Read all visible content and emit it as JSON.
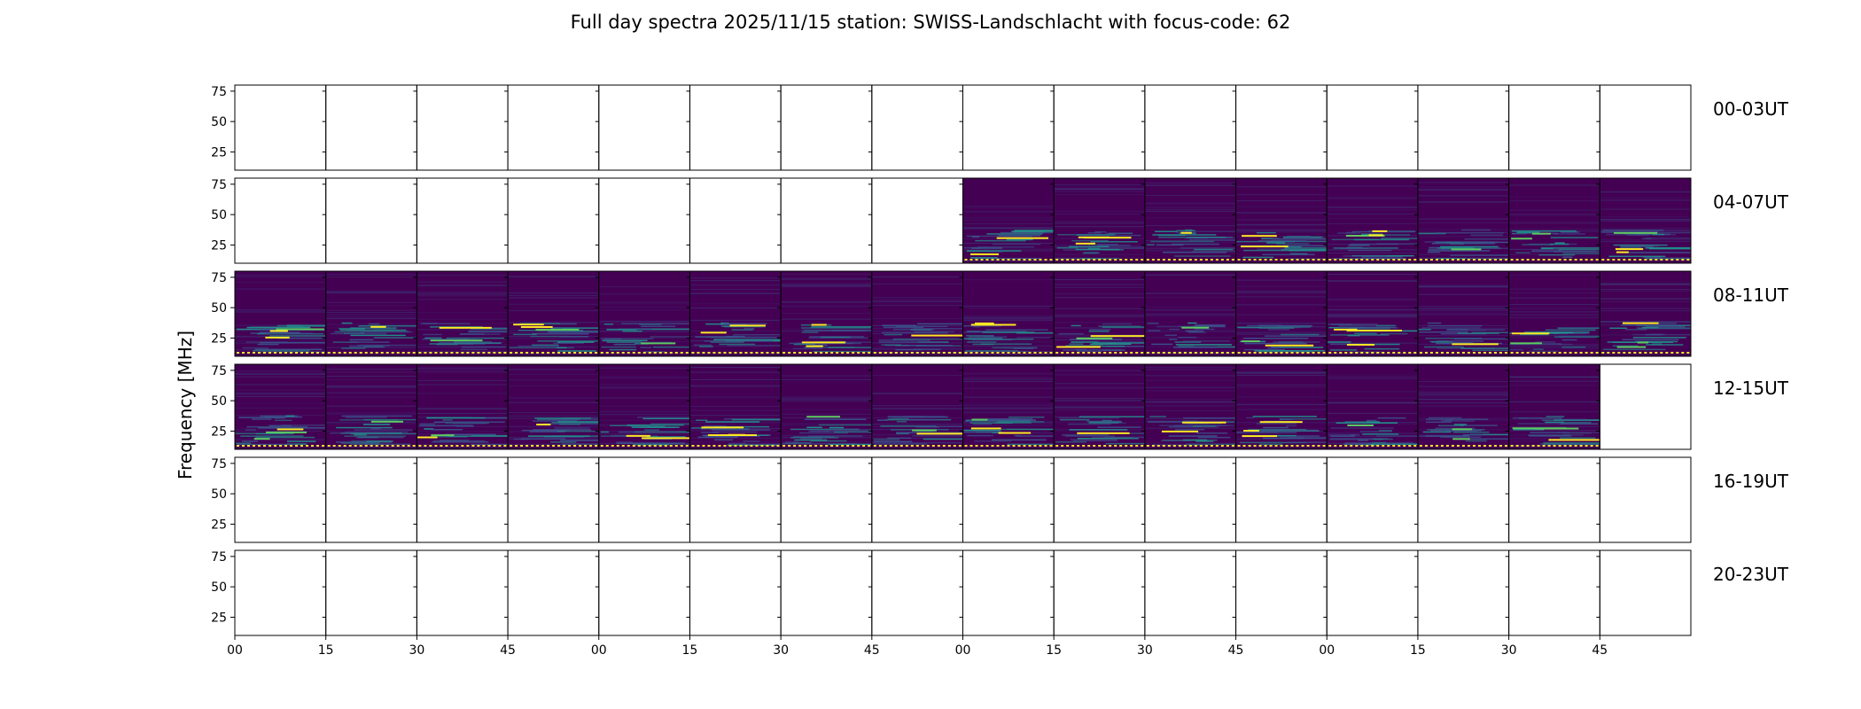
{
  "chart_data": {
    "type": "heatmap",
    "title": "Full day spectra 2025/11/15 station: SWISS-Landschlacht with focus-code: 62",
    "ylabel": "Frequency [MHz]",
    "xlabel": "",
    "yticks": [
      25,
      50,
      75
    ],
    "ylim": [
      10,
      80
    ],
    "xticks": [
      "00",
      "15",
      "30",
      "45",
      "00",
      "15",
      "30",
      "45",
      "00",
      "15",
      "30",
      "45",
      "00",
      "15",
      "30",
      "45"
    ],
    "panels_per_row": 16,
    "panel_minutes": 15,
    "grid": false,
    "colormap": "viridis",
    "colors": {
      "background": "#440154",
      "mid": "#3b528b",
      "teal": "#21918c",
      "green": "#5ec962",
      "yellow": "#fde725"
    },
    "rows": [
      {
        "label": "00-03UT",
        "data_panels": []
      },
      {
        "label": "04-07UT",
        "data_panels": [
          9,
          10,
          11,
          12,
          13,
          14,
          15,
          16
        ]
      },
      {
        "label": "08-11UT",
        "data_panels": [
          1,
          2,
          3,
          4,
          5,
          6,
          7,
          8,
          9,
          10,
          11,
          12,
          13,
          14,
          15,
          16
        ]
      },
      {
        "label": "12-15UT",
        "data_panels": [
          1,
          2,
          3,
          4,
          5,
          6,
          7,
          8,
          9,
          10,
          11,
          12,
          13,
          14,
          15
        ]
      },
      {
        "label": "16-19UT",
        "data_panels": []
      },
      {
        "label": "20-23UT",
        "data_panels": []
      }
    ]
  }
}
